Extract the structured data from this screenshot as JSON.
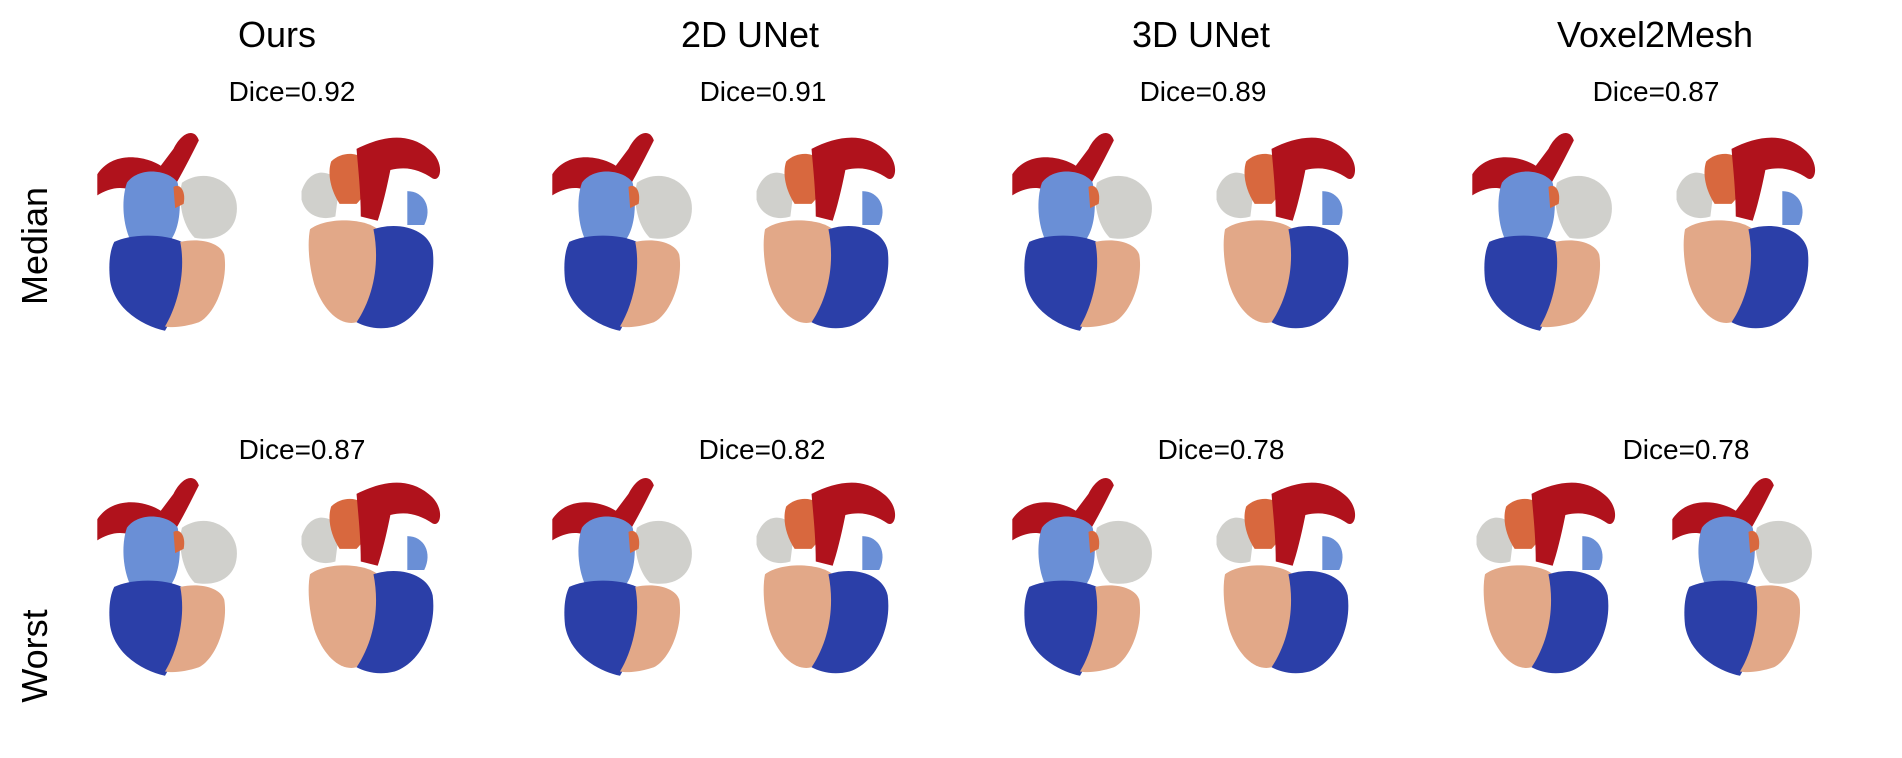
{
  "columns": [
    {
      "title": "Ours"
    },
    {
      "title": "2D UNet"
    },
    {
      "title": "3D UNet"
    },
    {
      "title": "Voxel2Mesh"
    }
  ],
  "rows": [
    {
      "label": "Median",
      "dice": [
        "Dice=0.92",
        "Dice=0.91",
        "Dice=0.89",
        "Dice=0.87"
      ]
    },
    {
      "label": "Worst",
      "dice": [
        "Dice=0.87",
        "Dice=0.82",
        "Dice=0.78",
        "Dice=0.78"
      ]
    }
  ],
  "colors": {
    "lv": "#2b3fa8",
    "rv": "#e2a888",
    "la": "#6a8fd6",
    "ra": "#d0d0cc",
    "aorta": "#b0121c",
    "pa": "#d8683e"
  }
}
